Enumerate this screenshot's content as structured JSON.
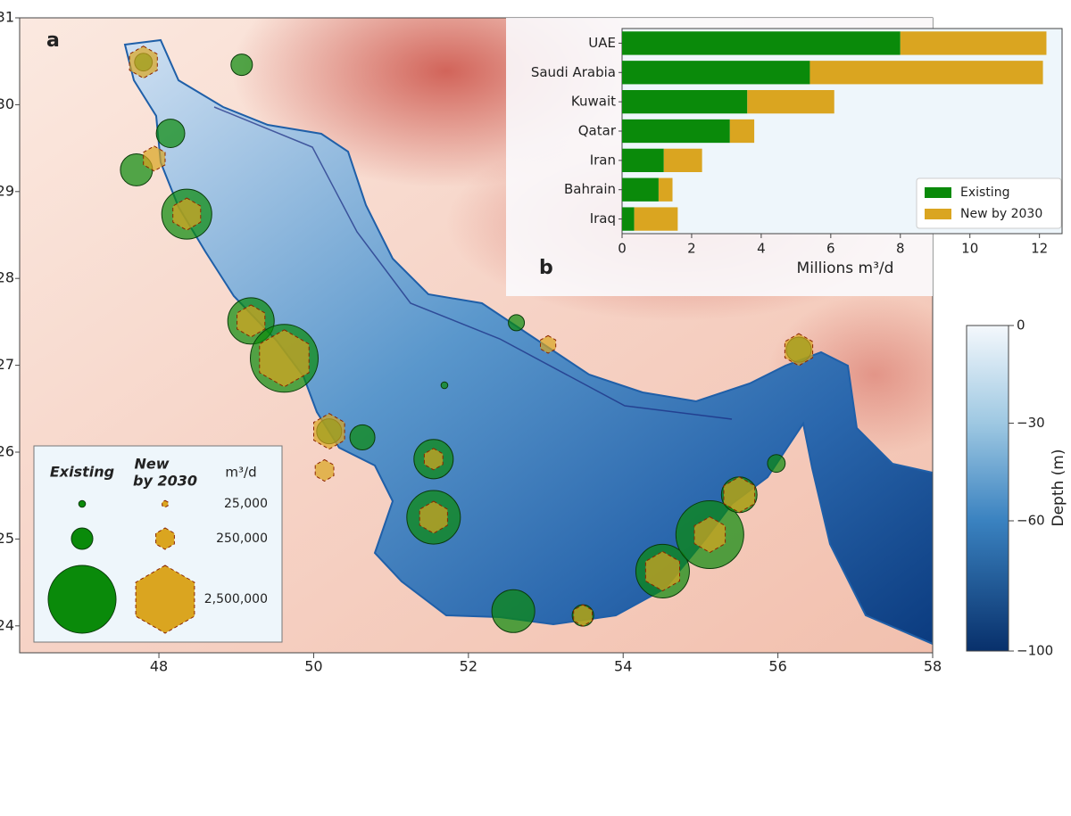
{
  "map": {
    "panel_label": "a",
    "xlim": [
      46.2,
      58
    ],
    "ylim": [
      23.69,
      31
    ],
    "xticks": [
      48,
      50,
      52,
      54,
      56,
      58
    ],
    "yticks": [
      24,
      25,
      26,
      27,
      28,
      29,
      30,
      31
    ],
    "existing_color": "#0a8a0a",
    "new_color": "#daa520",
    "colorbar": {
      "label": "Depth (m)",
      "lim": [
        -100,
        0
      ],
      "ticks": [
        {
          "value": 0,
          "label": "0"
        },
        {
          "value": -30,
          "label": "−30"
        },
        {
          "value": -60,
          "label": "−60"
        },
        {
          "value": -100,
          "label": "−100"
        }
      ]
    },
    "legend": {
      "existing_label": "Existing",
      "new_label_lines": [
        "New",
        "by 2030"
      ],
      "unit_label": "m³/d",
      "sizes": [
        {
          "value": 25000,
          "label": "25,000"
        },
        {
          "value": 250000,
          "label": "250,000"
        },
        {
          "value": 2500000,
          "label": "2,500,000"
        }
      ]
    },
    "plants": [
      {
        "lon": 47.8,
        "lat": 30.49,
        "existing": 170000,
        "new": 560000
      },
      {
        "lon": 49.07,
        "lat": 30.46,
        "existing": 250000,
        "new": null
      },
      {
        "lon": 48.15,
        "lat": 29.67,
        "existing": 440000,
        "new": null
      },
      {
        "lon": 47.71,
        "lat": 29.25,
        "existing": 560000,
        "new": null
      },
      {
        "lon": 47.94,
        "lat": 29.38,
        "existing": null,
        "new": 340000
      },
      {
        "lon": 48.36,
        "lat": 28.74,
        "existing": 1360000,
        "new": 560000
      },
      {
        "lon": 49.19,
        "lat": 27.51,
        "existing": 1170000,
        "new": 560000
      },
      {
        "lon": 49.62,
        "lat": 27.08,
        "existing": 2500000,
        "new": 1770000
      },
      {
        "lon": 50.2,
        "lat": 26.24,
        "existing": 340000,
        "new": 690000
      },
      {
        "lon": 50.63,
        "lat": 26.17,
        "existing": 340000,
        "new": null
      },
      {
        "lon": 50.14,
        "lat": 25.79,
        "existing": null,
        "new": 250000
      },
      {
        "lon": 51.55,
        "lat": 25.92,
        "existing": 840000,
        "new": 250000
      },
      {
        "lon": 51.55,
        "lat": 25.25,
        "existing": 1560000,
        "new": 560000
      },
      {
        "lon": 52.58,
        "lat": 24.17,
        "existing": 1000000,
        "new": null
      },
      {
        "lon": 53.48,
        "lat": 24.12,
        "existing": 250000,
        "new": 250000
      },
      {
        "lon": 54.51,
        "lat": 24.63,
        "existing": 1560000,
        "new": 840000
      },
      {
        "lon": 55.12,
        "lat": 25.05,
        "existing": 2500000,
        "new": 690000
      },
      {
        "lon": 55.5,
        "lat": 25.51,
        "existing": 690000,
        "new": 690000
      },
      {
        "lon": 55.98,
        "lat": 25.87,
        "existing": 170000,
        "new": null
      },
      {
        "lon": 56.27,
        "lat": 27.18,
        "existing": 340000,
        "new": 560000
      },
      {
        "lon": 52.62,
        "lat": 27.49,
        "existing": 140000,
        "new": null
      },
      {
        "lon": 53.03,
        "lat": 27.24,
        "existing": null,
        "new": 170000
      },
      {
        "lon": 51.69,
        "lat": 26.77,
        "existing": 25000,
        "new": null
      }
    ]
  },
  "chart_data": {
    "type": "hbar-stacked",
    "panel_label": "b",
    "categories": [
      "UAE",
      "Saudi Arabia",
      "Kuwait",
      "Qatar",
      "Iran",
      "Bahrain",
      "Iraq"
    ],
    "series": [
      {
        "name": "Existing",
        "color": "#0a8a0a",
        "values": [
          8.0,
          5.4,
          3.6,
          3.1,
          1.2,
          1.05,
          0.35
        ]
      },
      {
        "name": "New by 2030",
        "color": "#daa520",
        "values": [
          4.2,
          6.7,
          2.5,
          0.7,
          1.1,
          0.4,
          1.25
        ]
      }
    ],
    "xlabel": "Millions m³/d",
    "xlim": [
      0,
      12.65
    ],
    "xticks": [
      0,
      2,
      4,
      6,
      8,
      10,
      12
    ],
    "legend": "lower right"
  }
}
